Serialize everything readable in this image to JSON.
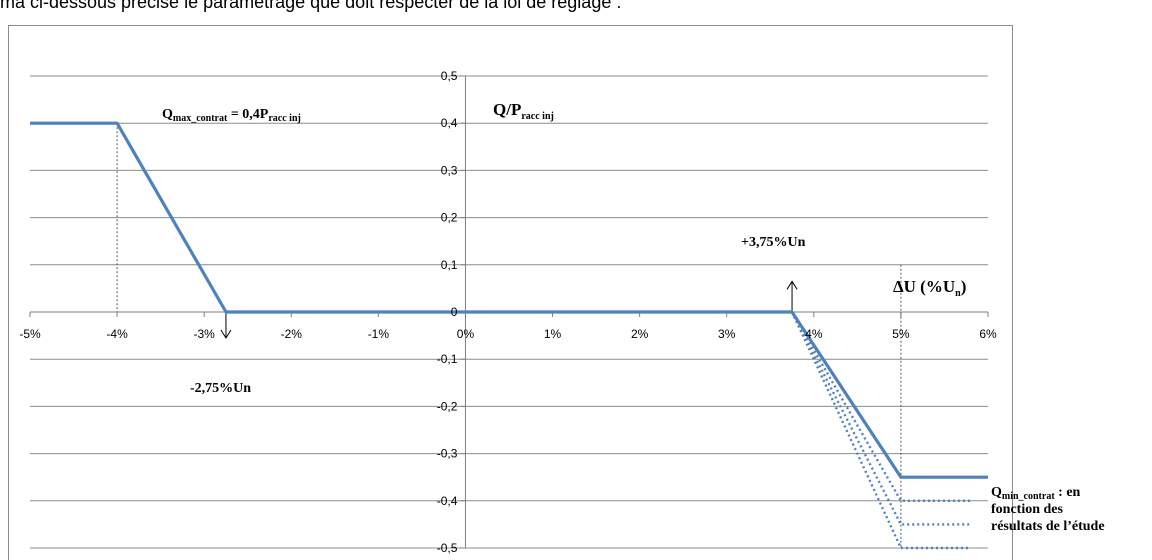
{
  "caption": "ma ci-dessous précise le paramétrage que doit respecter de la loi de réglage :",
  "chart_data": {
    "type": "line",
    "x_tick_labels": [
      "-5%",
      "-4%",
      "-3%",
      "-2%",
      "-1%",
      "0%",
      "1%",
      "2%",
      "3%",
      "4%",
      "5%",
      "6%"
    ],
    "y_tick_labels": [
      "0,5",
      "0,4",
      "0,3",
      "0,2",
      "0,1",
      "0",
      "-0,1",
      "-0,2",
      "-0,3",
      "-0,4",
      "-0,5"
    ],
    "xlim": [
      -5,
      6
    ],
    "ylim": [
      -0.5,
      0.5
    ],
    "grid": "horizontal",
    "series": [
      {
        "style": "solid",
        "color": "#4F81BD",
        "points": [
          [
            -5,
            0.4
          ],
          [
            -4,
            0.4
          ],
          [
            -2.75,
            0
          ],
          [
            3.75,
            0
          ],
          [
            5,
            -0.35
          ],
          [
            6,
            -0.35
          ]
        ]
      },
      {
        "style": "dotted",
        "color": "#4F81BD",
        "points": [
          [
            3.75,
            0
          ],
          [
            5,
            -0.4
          ],
          [
            5.8,
            -0.4
          ]
        ]
      },
      {
        "style": "dotted",
        "color": "#4F81BD",
        "points": [
          [
            3.75,
            0
          ],
          [
            5,
            -0.45
          ],
          [
            5.8,
            -0.45
          ]
        ]
      },
      {
        "style": "dotted",
        "color": "#4F81BD",
        "points": [
          [
            3.75,
            0
          ],
          [
            5,
            -0.5
          ],
          [
            5.8,
            -0.5
          ]
        ]
      }
    ],
    "guides": [
      {
        "x": -4,
        "from": 0.4,
        "to": 0
      },
      {
        "x": 5,
        "from": 0.1,
        "to": -0.5
      }
    ],
    "arrows": [
      {
        "x": -2.75,
        "from": 0,
        "to": -0.055
      },
      {
        "x": 3.75,
        "from": 0,
        "to": 0.065
      }
    ],
    "annotations": {
      "qmax": {
        "main": "Q",
        "sub": "max_contrat",
        "tail": " = 0,4P",
        "sub2": "racc inj"
      },
      "yaxis": {
        "main": "Q/P",
        "sub": "racc inj"
      },
      "xaxis": {
        "main": "ΔU (%U",
        "sub": "n",
        "tail": ")"
      },
      "minus": "-2,75%Un",
      "plus": "+3,75%Un",
      "qmin": {
        "main": "Q",
        "sub": "min_contrat",
        "tail": " : en",
        "line2": "fonction des",
        "line3": "résultats de l’étude"
      }
    }
  }
}
